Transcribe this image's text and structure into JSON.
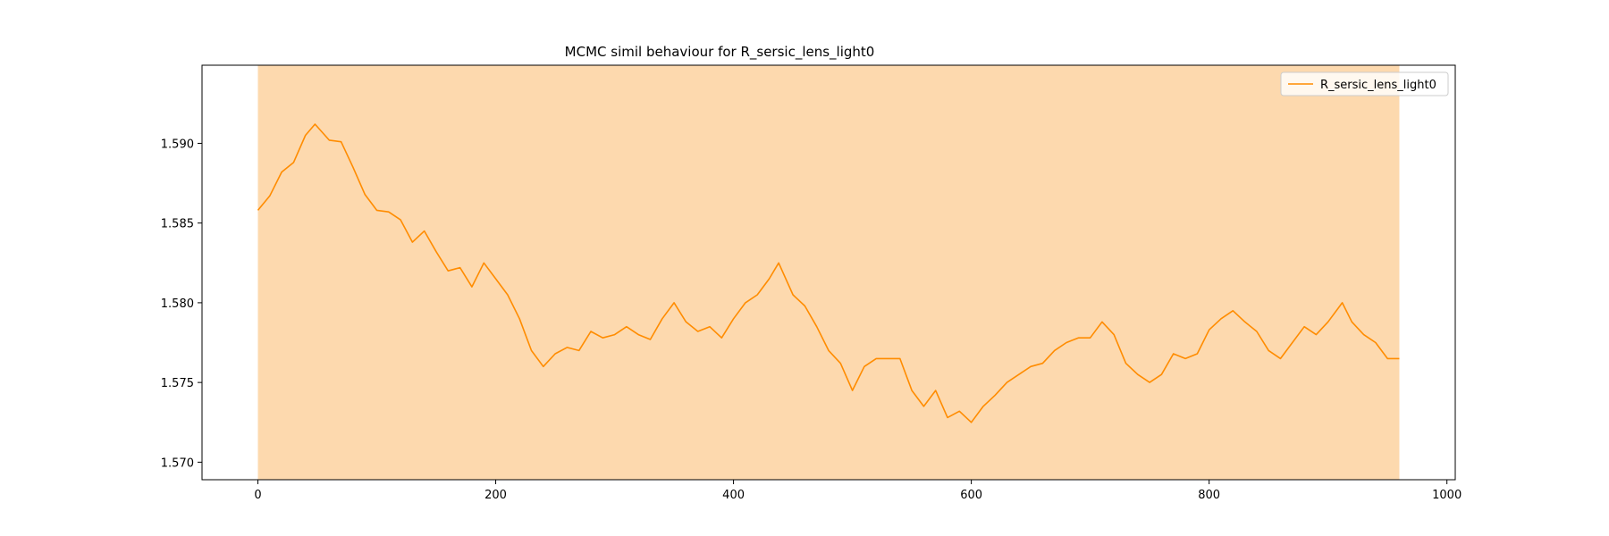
{
  "chart_data": {
    "type": "line",
    "title": "MCMC simil behaviour for R_sersic_lens_light0",
    "xlabel": "",
    "ylabel": "",
    "xlim": [
      -47,
      1007
    ],
    "ylim": [
      1.5689,
      1.5949
    ],
    "x_ticks": [
      0,
      200,
      400,
      600,
      800,
      1000
    ],
    "x_tick_labels": [
      "0",
      "200",
      "400",
      "600",
      "800",
      "1000"
    ],
    "y_ticks": [
      1.57,
      1.575,
      1.58,
      1.585,
      1.59
    ],
    "y_tick_labels": [
      "1.570",
      "1.575",
      "1.580",
      "1.585",
      "1.590"
    ],
    "grid": false,
    "legend_position": "top-right",
    "shaded_region": {
      "x_start": 0,
      "x_end": 960,
      "color": "#fdd9ae"
    },
    "series": [
      {
        "name": "R_sersic_lens_light0",
        "color": "#ff8c00",
        "x": [
          0,
          10,
          20,
          30,
          40,
          48,
          60,
          70,
          80,
          90,
          100,
          110,
          120,
          130,
          140,
          150,
          160,
          170,
          180,
          190,
          200,
          210,
          220,
          230,
          240,
          250,
          260,
          270,
          280,
          290,
          300,
          310,
          320,
          330,
          340,
          350,
          360,
          370,
          380,
          390,
          400,
          410,
          420,
          430,
          438,
          450,
          460,
          470,
          480,
          490,
          500,
          510,
          520,
          530,
          540,
          550,
          560,
          570,
          580,
          590,
          600,
          610,
          620,
          630,
          640,
          650,
          660,
          670,
          680,
          690,
          700,
          710,
          720,
          730,
          740,
          750,
          760,
          770,
          780,
          790,
          800,
          810,
          820,
          830,
          840,
          850,
          860,
          870,
          880,
          890,
          900,
          912,
          920,
          930,
          940,
          950,
          960
        ],
        "y": [
          1.5858,
          1.5867,
          1.5882,
          1.5888,
          1.5905,
          1.5912,
          1.5902,
          1.5901,
          1.5885,
          1.5868,
          1.5858,
          1.5857,
          1.5852,
          1.5838,
          1.5845,
          1.5832,
          1.582,
          1.5822,
          1.581,
          1.5825,
          1.5815,
          1.5805,
          1.579,
          1.577,
          1.576,
          1.5768,
          1.5772,
          1.577,
          1.5782,
          1.5778,
          1.578,
          1.5785,
          1.578,
          1.5777,
          1.579,
          1.58,
          1.5788,
          1.5782,
          1.5785,
          1.5778,
          1.579,
          1.58,
          1.5805,
          1.5815,
          1.5825,
          1.5805,
          1.5798,
          1.5785,
          1.577,
          1.5762,
          1.5745,
          1.576,
          1.5765,
          1.5765,
          1.5765,
          1.5745,
          1.5735,
          1.5745,
          1.5728,
          1.5732,
          1.5725,
          1.5735,
          1.5742,
          1.575,
          1.5755,
          1.576,
          1.5762,
          1.577,
          1.5775,
          1.5778,
          1.5778,
          1.5788,
          1.578,
          1.5762,
          1.5755,
          1.575,
          1.5755,
          1.5768,
          1.5765,
          1.5768,
          1.5783,
          1.579,
          1.5795,
          1.5788,
          1.5782,
          1.577,
          1.5765,
          1.5775,
          1.5785,
          1.578,
          1.5788,
          1.58,
          1.5788,
          1.578,
          1.5775,
          1.5765,
          1.5765
        ]
      }
    ]
  }
}
